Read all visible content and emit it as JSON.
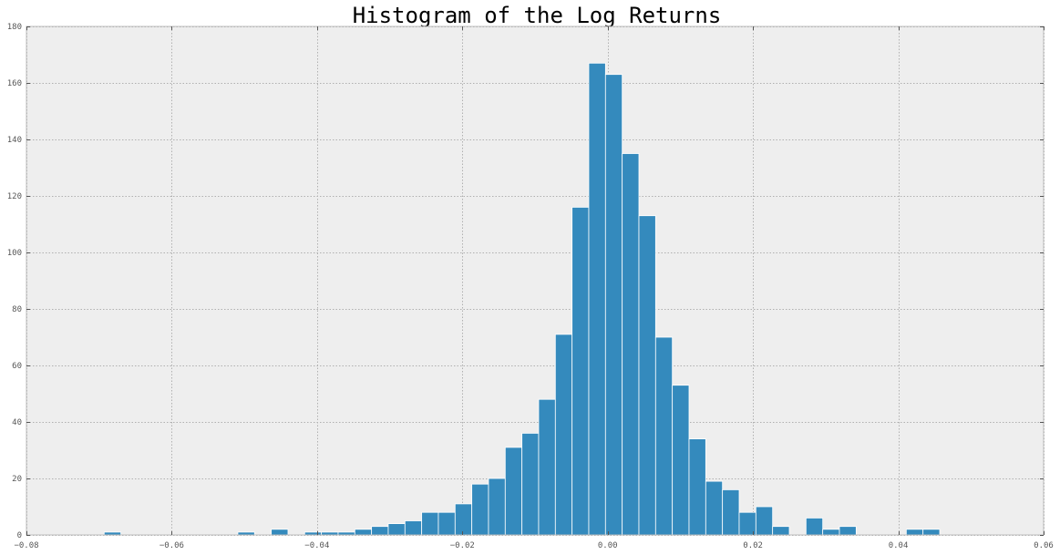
{
  "colors": {
    "bar": "#348abd",
    "bar_edge": "#ffffff",
    "plot_background": "#eeeeee",
    "grid": "#b0b0b0",
    "axis_border": "#bcbcbc",
    "tick_label": "#555555"
  },
  "chart_data": {
    "type": "bar",
    "title": "Histogram of the Log Returns",
    "xlabel": "",
    "ylabel": "",
    "xlim": [
      -0.08,
      0.06
    ],
    "ylim": [
      0,
      180
    ],
    "grid": true,
    "x_ticks": [
      -0.08,
      -0.06,
      -0.04,
      -0.02,
      0.0,
      0.02,
      0.04,
      0.06
    ],
    "x_tick_labels": [
      "−0.08",
      "−0.06",
      "−0.04",
      "−0.02",
      "0.00",
      "0.02",
      "0.04",
      "0.06"
    ],
    "y_ticks": [
      0,
      20,
      40,
      60,
      80,
      100,
      120,
      140,
      160,
      180
    ],
    "y_tick_labels": [
      "0",
      "20",
      "40",
      "60",
      "80",
      "100",
      "120",
      "140",
      "160",
      "180"
    ],
    "bin_width": 0.0023,
    "bins": [
      {
        "x0": -0.0693,
        "count": 1
      },
      {
        "x0": -0.067,
        "count": 0
      },
      {
        "x0": -0.0647,
        "count": 0
      },
      {
        "x0": -0.0624,
        "count": 0
      },
      {
        "x0": -0.0601,
        "count": 0
      },
      {
        "x0": -0.0578,
        "count": 0
      },
      {
        "x0": -0.0555,
        "count": 0
      },
      {
        "x0": -0.0532,
        "count": 0
      },
      {
        "x0": -0.0509,
        "count": 1
      },
      {
        "x0": -0.0486,
        "count": 0
      },
      {
        "x0": -0.0463,
        "count": 2
      },
      {
        "x0": -0.044,
        "count": 0
      },
      {
        "x0": -0.0417,
        "count": 1
      },
      {
        "x0": -0.0394,
        "count": 1
      },
      {
        "x0": -0.0371,
        "count": 1
      },
      {
        "x0": -0.0348,
        "count": 2
      },
      {
        "x0": -0.0325,
        "count": 3
      },
      {
        "x0": -0.0302,
        "count": 4
      },
      {
        "x0": -0.0279,
        "count": 5
      },
      {
        "x0": -0.0256,
        "count": 8
      },
      {
        "x0": -0.0233,
        "count": 8
      },
      {
        "x0": -0.021,
        "count": 11
      },
      {
        "x0": -0.0187,
        "count": 18
      },
      {
        "x0": -0.0164,
        "count": 20
      },
      {
        "x0": -0.0141,
        "count": 31
      },
      {
        "x0": -0.0118,
        "count": 36
      },
      {
        "x0": -0.0095,
        "count": 48
      },
      {
        "x0": -0.0072,
        "count": 71
      },
      {
        "x0": -0.0049,
        "count": 116
      },
      {
        "x0": -0.0026,
        "count": 167
      },
      {
        "x0": -0.0003,
        "count": 163
      },
      {
        "x0": 0.002,
        "count": 135
      },
      {
        "x0": 0.0043,
        "count": 113
      },
      {
        "x0": 0.0066,
        "count": 70
      },
      {
        "x0": 0.0089,
        "count": 53
      },
      {
        "x0": 0.0112,
        "count": 34
      },
      {
        "x0": 0.0135,
        "count": 19
      },
      {
        "x0": 0.0158,
        "count": 16
      },
      {
        "x0": 0.0181,
        "count": 8
      },
      {
        "x0": 0.0204,
        "count": 10
      },
      {
        "x0": 0.0227,
        "count": 3
      },
      {
        "x0": 0.025,
        "count": 0
      },
      {
        "x0": 0.0273,
        "count": 6
      },
      {
        "x0": 0.0296,
        "count": 2
      },
      {
        "x0": 0.0319,
        "count": 3
      },
      {
        "x0": 0.0342,
        "count": 0
      },
      {
        "x0": 0.0365,
        "count": 0
      },
      {
        "x0": 0.0388,
        "count": 0
      },
      {
        "x0": 0.0411,
        "count": 2
      },
      {
        "x0": 0.0434,
        "count": 2
      }
    ]
  }
}
